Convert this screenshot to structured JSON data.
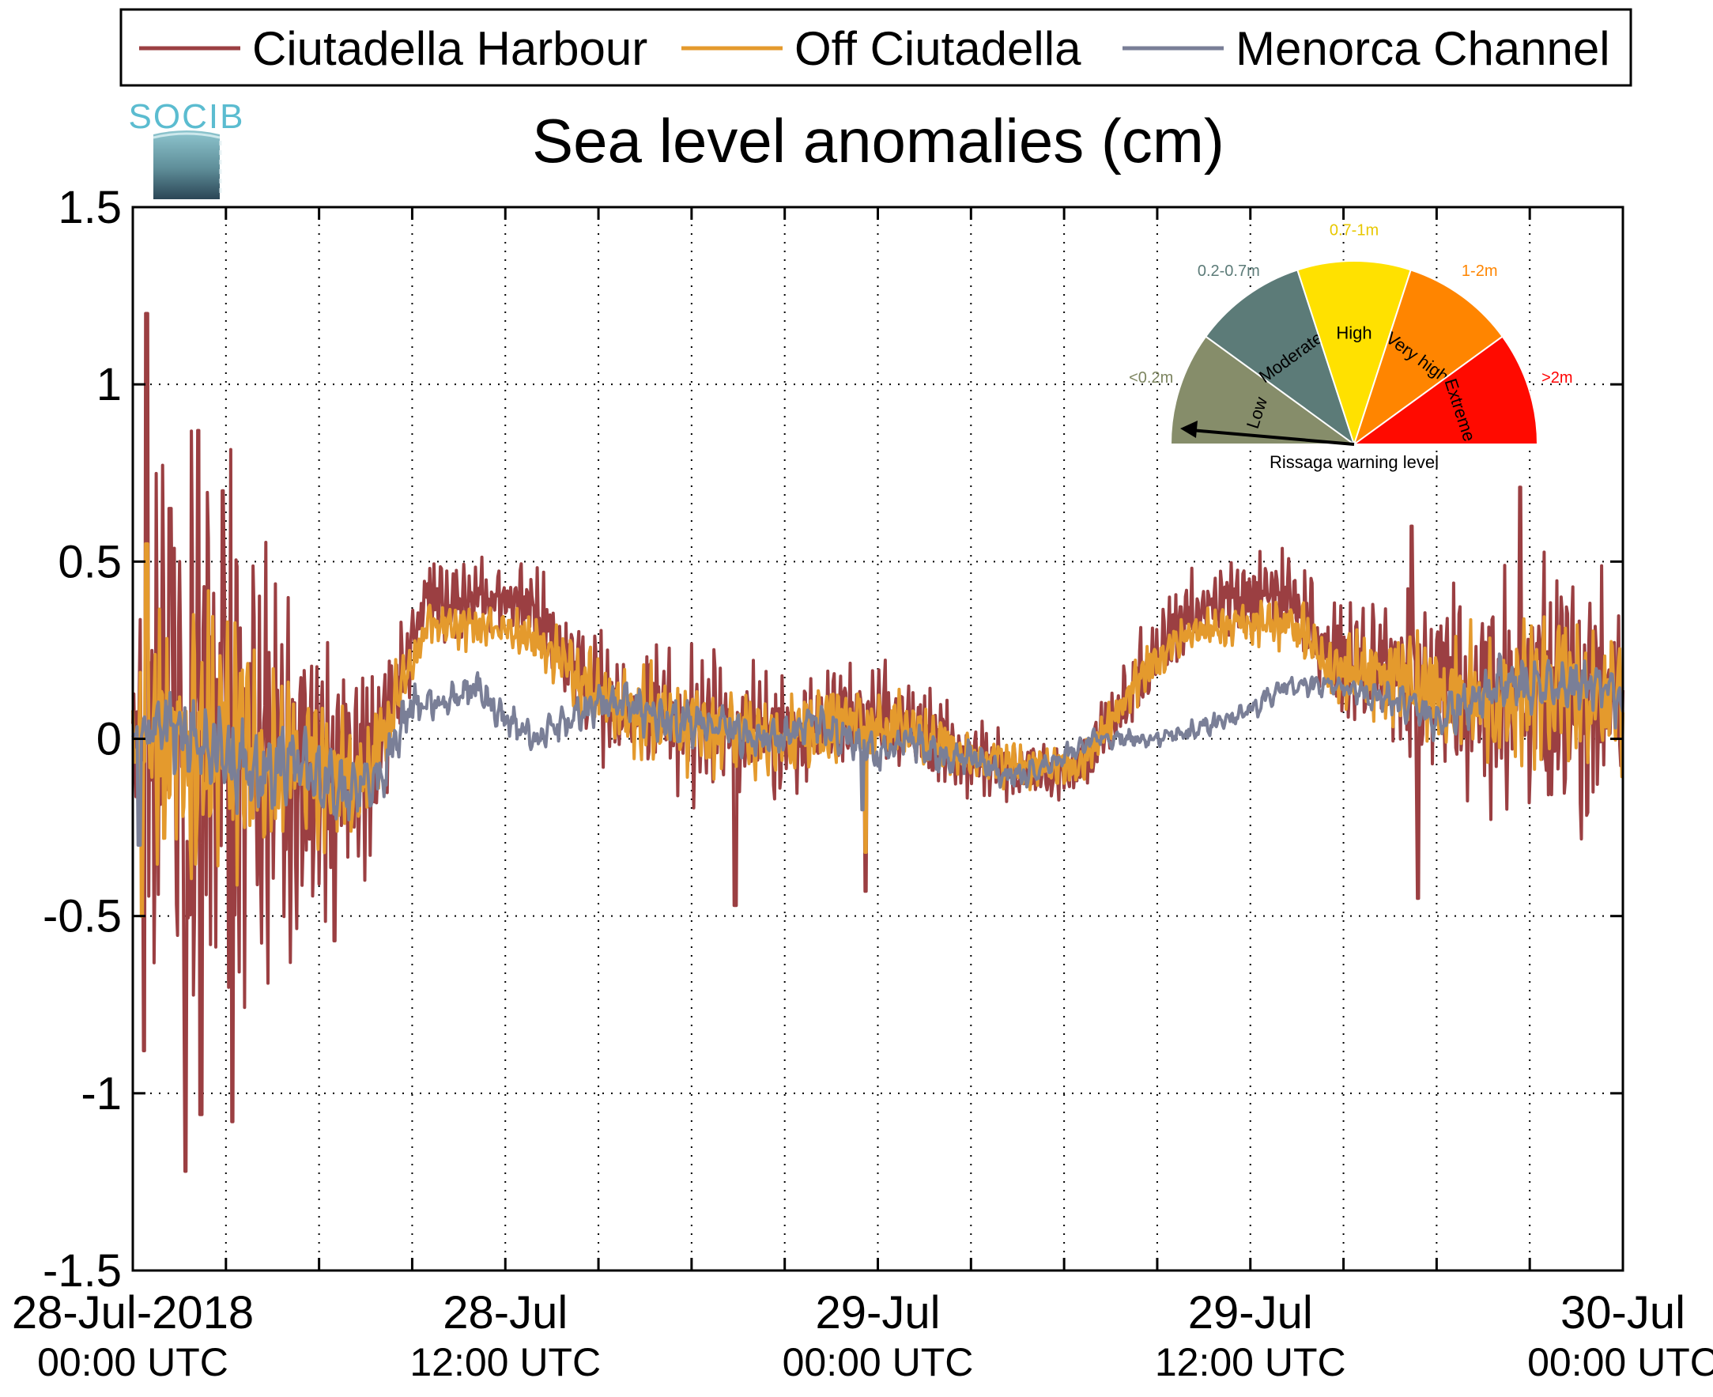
{
  "chart_data": {
    "type": "line",
    "title": "Sea level anomalies (cm)",
    "xlabel": "",
    "ylabel": "",
    "x_unit": "hours since 28-Jul-2018 00:00 UTC",
    "xlim": [
      0,
      48
    ],
    "ylim": [
      -1.5,
      1.5
    ],
    "yticks": [
      -1.5,
      -1,
      -0.5,
      0,
      0.5,
      1,
      1.5
    ],
    "ytick_labels": [
      "-1.5",
      "-1",
      "-0.5",
      "0",
      "0.5",
      "1",
      "1.5"
    ],
    "xticks": [
      {
        "x": 0,
        "date": "28-Jul-2018",
        "time": "00:00 UTC"
      },
      {
        "x": 12,
        "date": "28-Jul",
        "time": "12:00 UTC"
      },
      {
        "x": 24,
        "date": "29-Jul",
        "time": "00:00 UTC"
      },
      {
        "x": 36,
        "date": "29-Jul",
        "time": "12:00 UTC"
      },
      {
        "x": 48,
        "date": "30-Jul",
        "time": "00:00 UTC"
      }
    ],
    "grid_x": [
      3,
      6,
      9,
      12,
      15,
      18,
      21,
      24,
      27,
      30,
      33,
      36,
      39,
      42,
      45
    ],
    "grid": true,
    "legend_position": "top",
    "series": [
      {
        "name": "Ciutadella Harbour",
        "color": "#9b3f42",
        "base": [
          [
            0,
            0
          ],
          [
            2,
            0
          ],
          [
            4,
            -0.05
          ],
          [
            6,
            -0.1
          ],
          [
            7.5,
            -0.1
          ],
          [
            8.5,
            0.15
          ],
          [
            9.5,
            0.4
          ],
          [
            11,
            0.4
          ],
          [
            12.5,
            0.38
          ],
          [
            13.5,
            0.3
          ],
          [
            14.5,
            0.15
          ],
          [
            16,
            0.1
          ],
          [
            18,
            0.05
          ],
          [
            19.5,
            0.02
          ],
          [
            21,
            0
          ],
          [
            23,
            0.05
          ],
          [
            25,
            0.05
          ],
          [
            27,
            -0.05
          ],
          [
            29,
            -0.1
          ],
          [
            30.5,
            -0.08
          ],
          [
            31.5,
            0.05
          ],
          [
            32.5,
            0.2
          ],
          [
            34,
            0.35
          ],
          [
            36,
            0.4
          ],
          [
            37.5,
            0.4
          ],
          [
            38.5,
            0.25
          ],
          [
            40,
            0.2
          ],
          [
            41.5,
            0.15
          ],
          [
            43,
            0.1
          ],
          [
            44.5,
            0.1
          ],
          [
            46,
            0.15
          ],
          [
            48,
            0.1
          ]
        ],
        "amp": [
          [
            0,
            0.15
          ],
          [
            0.5,
            0.5
          ],
          [
            1,
            0.7
          ],
          [
            2,
            0.8
          ],
          [
            3,
            0.65
          ],
          [
            4,
            0.55
          ],
          [
            5,
            0.45
          ],
          [
            6,
            0.4
          ],
          [
            7,
            0.35
          ],
          [
            8,
            0.2
          ],
          [
            9,
            0.12
          ],
          [
            12,
            0.1
          ],
          [
            15,
            0.15
          ],
          [
            18,
            0.2
          ],
          [
            21,
            0.15
          ],
          [
            24,
            0.15
          ],
          [
            27,
            0.1
          ],
          [
            30,
            0.08
          ],
          [
            33,
            0.1
          ],
          [
            36,
            0.1
          ],
          [
            39,
            0.15
          ],
          [
            41,
            0.2
          ],
          [
            43,
            0.3
          ],
          [
            45,
            0.3
          ],
          [
            46.5,
            0.35
          ],
          [
            48,
            0.25
          ]
        ],
        "freq": 2.6,
        "spikes": [
          [
            0.45,
            1.2
          ],
          [
            0.35,
            -0.88
          ],
          [
            1.7,
            -1.22
          ],
          [
            2.2,
            -1.06
          ],
          [
            3.2,
            -1.08
          ],
          [
            2.1,
            0.87
          ],
          [
            1.2,
            0.65
          ],
          [
            2.9,
            0.7
          ],
          [
            6.5,
            -0.57
          ],
          [
            19.4,
            -0.47
          ],
          [
            23.6,
            -0.43
          ],
          [
            41.2,
            0.6
          ],
          [
            41.4,
            -0.45
          ],
          [
            44.7,
            0.71
          ]
        ]
      },
      {
        "name": "Off Ciutadella",
        "color": "#e49a2d",
        "base": [
          [
            0,
            0
          ],
          [
            2,
            0
          ],
          [
            4,
            -0.05
          ],
          [
            6,
            -0.1
          ],
          [
            7.5,
            -0.12
          ],
          [
            8.5,
            0.12
          ],
          [
            9.5,
            0.32
          ],
          [
            11,
            0.32
          ],
          [
            12.5,
            0.3
          ],
          [
            13.5,
            0.25
          ],
          [
            14.5,
            0.15
          ],
          [
            16,
            0.08
          ],
          [
            18,
            0.05
          ],
          [
            19.5,
            0.02
          ],
          [
            21,
            0
          ],
          [
            23,
            0.05
          ],
          [
            25,
            0.03
          ],
          [
            27,
            -0.05
          ],
          [
            29,
            -0.08
          ],
          [
            30.5,
            -0.08
          ],
          [
            31.5,
            0.05
          ],
          [
            32.5,
            0.18
          ],
          [
            34,
            0.3
          ],
          [
            36,
            0.32
          ],
          [
            37.5,
            0.32
          ],
          [
            38.5,
            0.2
          ],
          [
            40,
            0.18
          ],
          [
            41.5,
            0.15
          ],
          [
            43,
            0.1
          ],
          [
            44.5,
            0.1
          ],
          [
            46,
            0.15
          ],
          [
            48,
            0.1
          ]
        ],
        "amp": [
          [
            0,
            0.1
          ],
          [
            0.5,
            0.3
          ],
          [
            1,
            0.4
          ],
          [
            2,
            0.4
          ],
          [
            3,
            0.35
          ],
          [
            4,
            0.3
          ],
          [
            5,
            0.25
          ],
          [
            6,
            0.2
          ],
          [
            7,
            0.18
          ],
          [
            8,
            0.1
          ],
          [
            9,
            0.06
          ],
          [
            12,
            0.05
          ],
          [
            15,
            0.1
          ],
          [
            18,
            0.12
          ],
          [
            21,
            0.1
          ],
          [
            24,
            0.1
          ],
          [
            27,
            0.06
          ],
          [
            30,
            0.05
          ],
          [
            33,
            0.06
          ],
          [
            36,
            0.06
          ],
          [
            39,
            0.1
          ],
          [
            41,
            0.12
          ],
          [
            43,
            0.18
          ],
          [
            45,
            0.18
          ],
          [
            46.5,
            0.2
          ],
          [
            48,
            0.15
          ]
        ],
        "freq": 2.2,
        "spikes": [
          [
            0.45,
            0.55
          ],
          [
            0.3,
            -0.5
          ],
          [
            23.6,
            -0.32
          ]
        ]
      },
      {
        "name": "Menorca Channel",
        "color": "#7a7f97",
        "base": [
          [
            0,
            0
          ],
          [
            1,
            0.05
          ],
          [
            2,
            0
          ],
          [
            3,
            -0.05
          ],
          [
            4,
            -0.1
          ],
          [
            5,
            -0.05
          ],
          [
            6,
            -0.1
          ],
          [
            7,
            -0.15
          ],
          [
            8,
            -0.1
          ],
          [
            9,
            0.1
          ],
          [
            10,
            0.1
          ],
          [
            11,
            0.15
          ],
          [
            12,
            0.05
          ],
          [
            13,
            0
          ],
          [
            14,
            0.05
          ],
          [
            15,
            0.1
          ],
          [
            16,
            0.1
          ],
          [
            17,
            0.05
          ],
          [
            18,
            0.05
          ],
          [
            19,
            0.05
          ],
          [
            20,
            0
          ],
          [
            21,
            0
          ],
          [
            22,
            0.05
          ],
          [
            23,
            0
          ],
          [
            24,
            -0.05
          ],
          [
            25,
            0
          ],
          [
            26,
            -0.05
          ],
          [
            27,
            -0.05
          ],
          [
            28,
            -0.1
          ],
          [
            29,
            -0.1
          ],
          [
            30,
            -0.05
          ],
          [
            31,
            0
          ],
          [
            32,
            0
          ],
          [
            33,
            0
          ],
          [
            34,
            0.02
          ],
          [
            35,
            0.05
          ],
          [
            36,
            0.08
          ],
          [
            37,
            0.15
          ],
          [
            38,
            0.15
          ],
          [
            39,
            0.15
          ],
          [
            40,
            0.12
          ],
          [
            41,
            0.1
          ],
          [
            42,
            0.05
          ],
          [
            43,
            0.1
          ],
          [
            44,
            0.15
          ],
          [
            45,
            0.15
          ],
          [
            46,
            0.15
          ],
          [
            47,
            0.15
          ],
          [
            48,
            0.1
          ]
        ],
        "amp": [
          [
            0,
            0.05
          ],
          [
            1,
            0.1
          ],
          [
            3,
            0.12
          ],
          [
            6,
            0.1
          ],
          [
            9,
            0.05
          ],
          [
            12,
            0.04
          ],
          [
            15,
            0.05
          ],
          [
            18,
            0.06
          ],
          [
            21,
            0.05
          ],
          [
            24,
            0.05
          ],
          [
            27,
            0.04
          ],
          [
            30,
            0.03
          ],
          [
            33,
            0.02
          ],
          [
            36,
            0.03
          ],
          [
            39,
            0.03
          ],
          [
            42,
            0.06
          ],
          [
            45,
            0.07
          ],
          [
            48,
            0.06
          ]
        ],
        "freq": 1.2,
        "spikes": [
          [
            0.2,
            -0.3
          ],
          [
            23.5,
            -0.2
          ]
        ]
      }
    ]
  },
  "logo": {
    "text": "SOCIB"
  },
  "warning_gauge": {
    "caption": "Rissaga warning level",
    "current_level": "Low",
    "segments": [
      {
        "name": "Low",
        "range": "<0.2m",
        "color": "#868d6a",
        "range_color": "#7d8560"
      },
      {
        "name": "Moderate",
        "range": "0.2-0.7m",
        "color": "#5c7b78",
        "range_color": "#5c7b78"
      },
      {
        "name": "High",
        "range": "0.7-1m",
        "color": "#ffe100",
        "range_color": "#e8c800"
      },
      {
        "name": "Very high",
        "range": "1-2m",
        "color": "#ff8500",
        "range_color": "#ff8500"
      },
      {
        "name": "Extreme",
        "range": ">2m",
        "color": "#ff0a00",
        "range_color": "#ff0000"
      }
    ]
  }
}
